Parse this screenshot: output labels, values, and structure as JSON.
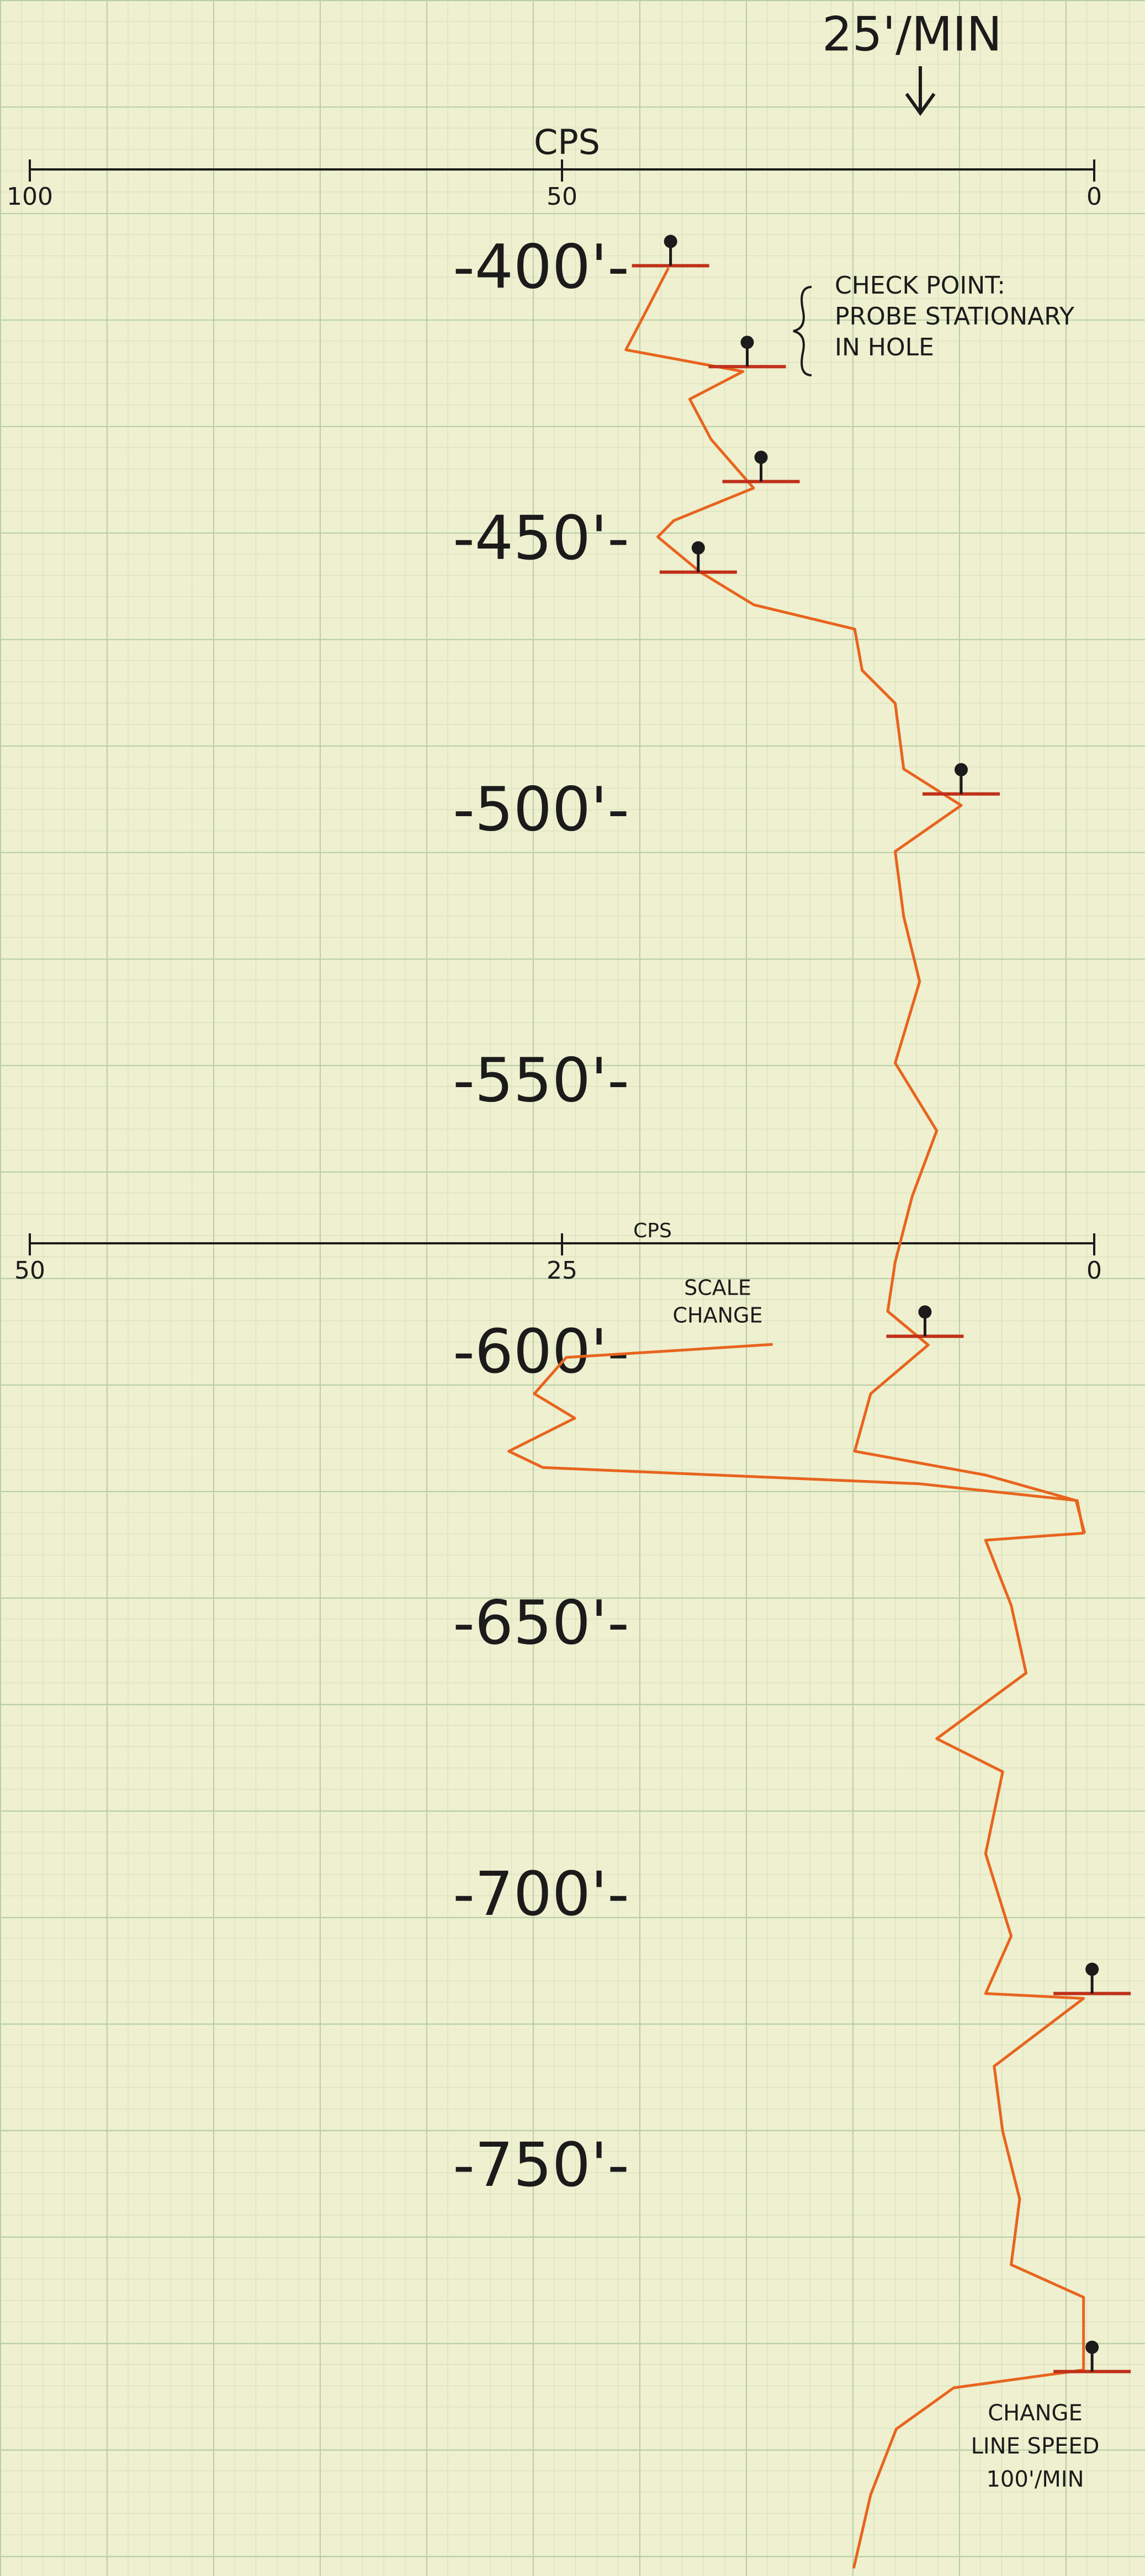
{
  "chart_data": {
    "type": "line",
    "title": "25'/MIN",
    "x_label": "CPS",
    "x2_label": "CPS",
    "xlim": [
      100,
      0
    ],
    "xticks": [
      100,
      50,
      0
    ],
    "x2lim": [
      50,
      0
    ],
    "x2ticks": [
      50,
      25,
      0
    ],
    "ylim": [
      350,
      825
    ],
    "yticks": [
      {
        "value": 400,
        "label": "-400'-"
      },
      {
        "value": 450,
        "label": "-450'-"
      },
      {
        "value": 500,
        "label": "-500'-"
      },
      {
        "value": 550,
        "label": "-550'-"
      },
      {
        "value": 600,
        "label": "-600'-"
      },
      {
        "value": 650,
        "label": "-650'-"
      },
      {
        "value": 700,
        "label": "-700'-"
      },
      {
        "value": 750,
        "label": "-750'-"
      }
    ],
    "series": [
      {
        "color": "#e8641e",
        "depths": [
          399.4,
          407,
          414.5,
          418.5,
          423.6,
          431,
          440,
          446,
          449,
          455.5,
          461.5,
          466,
          473.6,
          479.7,
          491.8,
          498.5,
          507,
          519,
          531,
          546,
          558.5,
          570.6,
          582.7,
          591.8,
          598,
          607,
          617.6,
          622,
          626.7,
          632.7
        ],
        "values": [
          40,
          42,
          44,
          33,
          38,
          36,
          32,
          39.5,
          41,
          37,
          32,
          22.5,
          21.8,
          18.7,
          17.9,
          12.5,
          18.7,
          17.9,
          16.4,
          18.7,
          14.8,
          17.1,
          18.7,
          19.4,
          15.6,
          21,
          22.5,
          10.2,
          1.7,
          0.9
        ]
      },
      {
        "color": "#e8641e",
        "axis": "x2",
        "depths": [
          597.9,
          600.3,
          607,
          611.5,
          617.6,
          620.6,
          623.6,
          626.7,
          632.7,
          634,
          646,
          658.5,
          670.6,
          676.7,
          691.8,
          707,
          717.6,
          718.5,
          731,
          743,
          755.5,
          767.6,
          773.6,
          787,
          790.3,
          797.9,
          810,
          823.6
        ],
        "values": [
          15.1,
          24.8,
          26.3,
          24.4,
          27.5,
          25.9,
          8.2,
          0.8,
          0.5,
          5.1,
          3.9,
          3.2,
          7.4,
          4.3,
          5.1,
          3.9,
          5.1,
          0.5,
          4.7,
          4.3,
          3.5,
          3.9,
          0.5,
          0.5,
          6.6,
          9.3,
          10.5,
          11.3
        ]
      }
    ],
    "checkpoints": [
      {
        "value": 39.8,
        "depth": 399
      },
      {
        "value": 32.6,
        "depth": 417.6
      },
      {
        "value": 31.3,
        "depth": 438.8
      },
      {
        "value": 37.2,
        "depth": 455.5
      },
      {
        "value": 12.5,
        "depth": 496.4
      },
      {
        "value": 15.9,
        "depth": 596.4
      },
      {
        "value": 0.1,
        "depth": 717.6,
        "axis": "x2"
      },
      {
        "value": 0.1,
        "depth": 787.3,
        "axis": "x2"
      }
    ],
    "checkpoint_note": [
      "CHECK POINT:",
      "PROBE STATIONARY",
      "IN HOLE"
    ],
    "scale_note": [
      "SCALE",
      "CHANGE"
    ],
    "speed_note": [
      "CHANGE",
      "LINE SPEED",
      "100'/MIN"
    ]
  }
}
